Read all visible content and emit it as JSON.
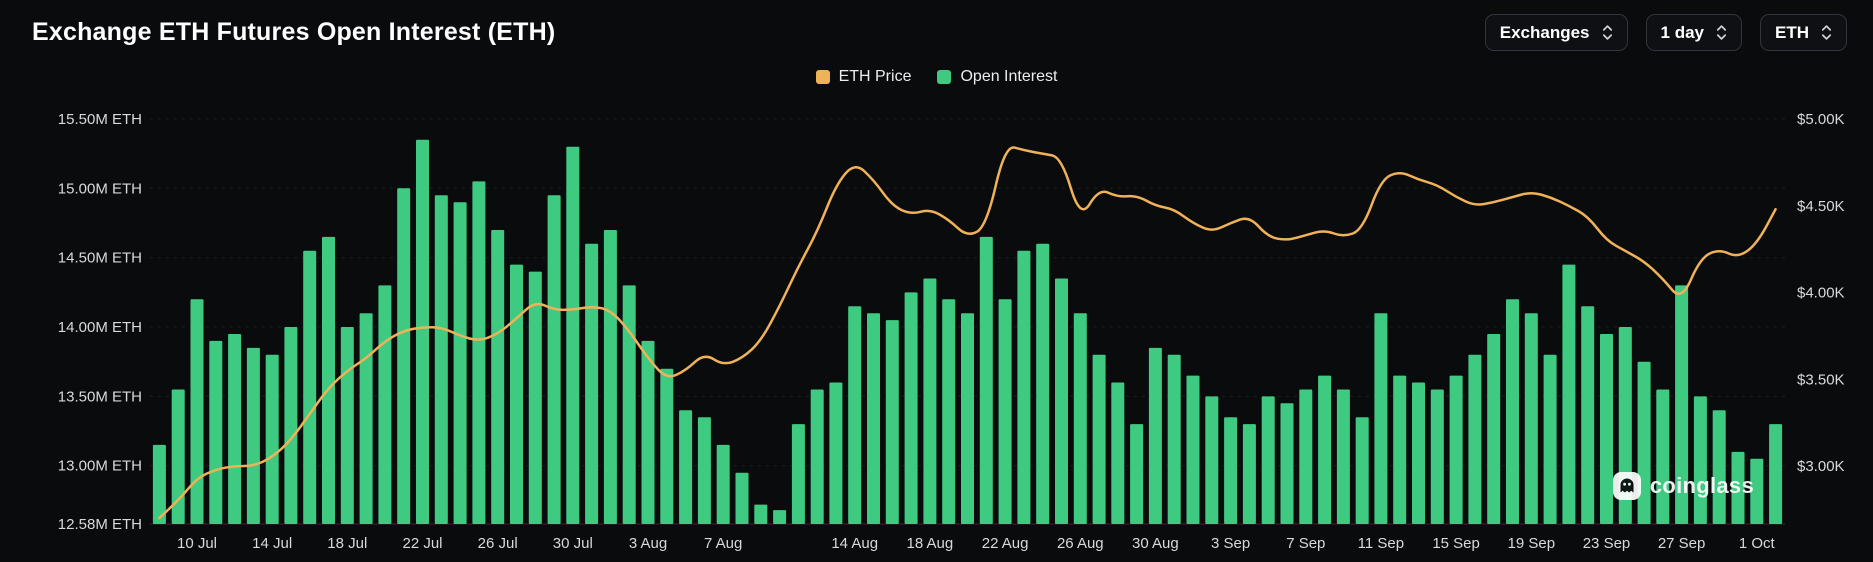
{
  "header": {
    "title": "Exchange ETH Futures Open Interest (ETH)",
    "controls": [
      {
        "label": "Exchanges"
      },
      {
        "label": "1 day"
      },
      {
        "label": "ETH"
      }
    ]
  },
  "legend": [
    {
      "label": "ETH Price",
      "color": "#f0b259"
    },
    {
      "label": "Open Interest",
      "color": "#3ecb81"
    }
  ],
  "watermark": {
    "text": "coinglass"
  },
  "colors": {
    "background": "#0a0b0d",
    "bar": "#3ecb81",
    "line": "#f0b259",
    "axis_text": "#d7d9dc"
  },
  "chart_data": {
    "type": "bar",
    "title": "Exchange ETH Futures Open Interest (ETH)",
    "legend_position": "top-center",
    "grid": true,
    "x": [
      "8 Jul",
      "9 Jul",
      "10 Jul",
      "11 Jul",
      "12 Jul",
      "13 Jul",
      "14 Jul",
      "15 Jul",
      "16 Jul",
      "17 Jul",
      "18 Jul",
      "19 Jul",
      "20 Jul",
      "21 Jul",
      "22 Jul",
      "23 Jul",
      "24 Jul",
      "25 Jul",
      "26 Jul",
      "27 Jul",
      "28 Jul",
      "29 Jul",
      "30 Jul",
      "31 Jul",
      "1 Aug",
      "2 Aug",
      "3 Aug",
      "4 Aug",
      "5 Aug",
      "6 Aug",
      "7 Aug",
      "8 Aug",
      "9 Aug",
      "10 Aug",
      "11 Aug",
      "12 Aug",
      "13 Aug",
      "14 Aug",
      "15 Aug",
      "16 Aug",
      "17 Aug",
      "18 Aug",
      "19 Aug",
      "20 Aug",
      "21 Aug",
      "22 Aug",
      "23 Aug",
      "24 Aug",
      "25 Aug",
      "26 Aug",
      "27 Aug",
      "28 Aug",
      "29 Aug",
      "30 Aug",
      "31 Aug",
      "1 Sep",
      "2 Sep",
      "3 Sep",
      "4 Sep",
      "5 Sep",
      "6 Sep",
      "7 Sep",
      "8 Sep",
      "9 Sep",
      "10 Sep",
      "11 Sep",
      "12 Sep",
      "13 Sep",
      "14 Sep",
      "15 Sep",
      "16 Sep",
      "17 Sep",
      "18 Sep",
      "19 Sep",
      "20 Sep",
      "21 Sep",
      "22 Sep",
      "23 Sep",
      "24 Sep",
      "25 Sep",
      "26 Sep",
      "27 Sep",
      "28 Sep",
      "29 Sep",
      "30 Sep",
      "1 Oct",
      "2 Oct"
    ],
    "series": [
      {
        "name": "Open Interest",
        "type": "bar",
        "axis": "left",
        "unit": "M ETH",
        "color": "#3ecb81",
        "values": [
          13.15,
          13.55,
          14.2,
          13.9,
          13.95,
          13.85,
          13.8,
          14.0,
          14.55,
          14.65,
          14.0,
          14.1,
          14.3,
          15.0,
          15.35,
          14.95,
          14.9,
          15.05,
          14.7,
          14.45,
          14.4,
          14.95,
          15.3,
          14.6,
          14.7,
          14.3,
          13.9,
          13.7,
          13.4,
          13.35,
          13.15,
          12.95,
          12.72,
          12.68,
          13.3,
          13.55,
          13.6,
          14.15,
          14.1,
          14.05,
          14.25,
          14.35,
          14.2,
          14.1,
          14.65,
          14.2,
          14.55,
          14.6,
          14.35,
          14.1,
          13.8,
          13.6,
          13.3,
          13.85,
          13.8,
          13.65,
          13.5,
          13.35,
          13.3,
          13.5,
          13.45,
          13.55,
          13.65,
          13.55,
          13.35,
          14.1,
          13.65,
          13.6,
          13.55,
          13.65,
          13.8,
          13.95,
          14.2,
          14.1,
          13.8,
          14.45,
          14.15,
          13.95,
          14.0,
          13.75,
          13.55,
          14.3,
          13.5,
          13.4,
          13.1,
          13.05,
          13.3
        ]
      },
      {
        "name": "ETH Price",
        "type": "line",
        "axis": "right",
        "unit": "$K",
        "color": "#f0b259",
        "values": [
          2.7,
          2.8,
          2.93,
          2.98,
          3.0,
          3.0,
          3.05,
          3.15,
          3.3,
          3.45,
          3.55,
          3.62,
          3.72,
          3.78,
          3.8,
          3.8,
          3.75,
          3.72,
          3.76,
          3.85,
          3.95,
          3.9,
          3.9,
          3.92,
          3.9,
          3.78,
          3.62,
          3.5,
          3.55,
          3.65,
          3.58,
          3.62,
          3.72,
          3.92,
          4.15,
          4.35,
          4.62,
          4.75,
          4.65,
          4.5,
          4.45,
          4.48,
          4.42,
          4.32,
          4.38,
          4.85,
          4.82,
          4.8,
          4.78,
          4.42,
          4.6,
          4.55,
          4.56,
          4.5,
          4.48,
          4.4,
          4.35,
          4.4,
          4.44,
          4.32,
          4.3,
          4.33,
          4.36,
          4.32,
          4.36,
          4.65,
          4.7,
          4.65,
          4.62,
          4.55,
          4.5,
          4.52,
          4.55,
          4.58,
          4.55,
          4.5,
          4.44,
          4.3,
          4.24,
          4.18,
          4.08,
          3.95,
          4.2,
          4.25,
          4.2,
          4.28,
          4.48
        ]
      }
    ],
    "left_axis": {
      "ticks": [
        "15.50M ETH",
        "15.00M ETH",
        "14.50M ETH",
        "14.00M ETH",
        "13.50M ETH",
        "13.00M ETH",
        "12.58M ETH"
      ],
      "tick_values": [
        15.5,
        15.0,
        14.5,
        14.0,
        13.5,
        13.0,
        12.58
      ],
      "min": 12.58,
      "max": 15.5
    },
    "right_axis": {
      "ticks": [
        "$5.00K",
        "$4.50K",
        "$4.00K",
        "$3.50K",
        "$3.00K"
      ],
      "tick_values": [
        5.0,
        4.5,
        4.0,
        3.5,
        3.0
      ],
      "min": 3.0,
      "max": 5.0
    },
    "x_ticks": [
      {
        "label": "10 Jul",
        "index": 2
      },
      {
        "label": "14 Jul",
        "index": 6
      },
      {
        "label": "18 Jul",
        "index": 10
      },
      {
        "label": "22 Jul",
        "index": 14
      },
      {
        "label": "26 Jul",
        "index": 18
      },
      {
        "label": "30 Jul",
        "index": 22
      },
      {
        "label": "3 Aug",
        "index": 26
      },
      {
        "label": "7 Aug",
        "index": 30
      },
      {
        "label": "14 Aug",
        "index": 37
      },
      {
        "label": "18 Aug",
        "index": 41
      },
      {
        "label": "22 Aug",
        "index": 45
      },
      {
        "label": "26 Aug",
        "index": 49
      },
      {
        "label": "30 Aug",
        "index": 53
      },
      {
        "label": "3 Sep",
        "index": 57
      },
      {
        "label": "7 Sep",
        "index": 61
      },
      {
        "label": "11 Sep",
        "index": 65
      },
      {
        "label": "15 Sep",
        "index": 69
      },
      {
        "label": "19 Sep",
        "index": 73
      },
      {
        "label": "23 Sep",
        "index": 77
      },
      {
        "label": "27 Sep",
        "index": 81
      },
      {
        "label": "1 Oct",
        "index": 85
      }
    ]
  }
}
